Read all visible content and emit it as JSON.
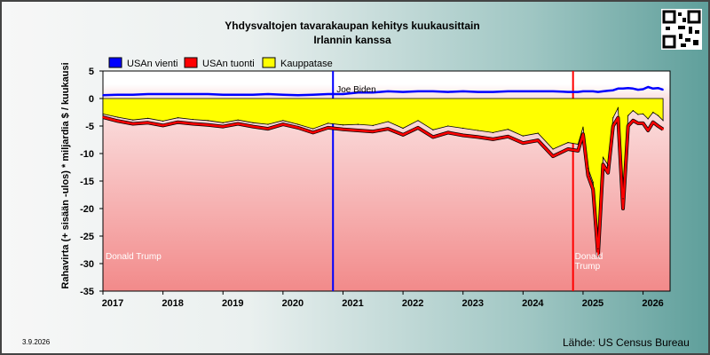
{
  "chart_data": {
    "type": "area",
    "title": "Yhdysvaltojen tavarakaupan kehitys kuukausittain",
    "subtitle": "Irlannin kanssa",
    "ylabel": "Rahavirta (+ sisään -ulos)  * miljardia $ / kuukausi",
    "ylim": [
      -35,
      5
    ],
    "y_ticks": [
      5,
      0,
      -5,
      -10,
      -15,
      -20,
      -25,
      -30,
      -35
    ],
    "x_ticks": [
      "2017",
      "2018",
      "2019",
      "2020",
      "2021",
      "2022",
      "2023",
      "2024",
      "2025",
      "2026"
    ],
    "grid": false,
    "legend_position": "top",
    "x": [
      "2017-01",
      "2017-04",
      "2017-07",
      "2017-10",
      "2018-01",
      "2018-04",
      "2018-07",
      "2018-10",
      "2019-01",
      "2019-04",
      "2019-07",
      "2019-10",
      "2020-01",
      "2020-04",
      "2020-07",
      "2020-10",
      "2021-01",
      "2021-04",
      "2021-07",
      "2021-10",
      "2022-01",
      "2022-04",
      "2022-07",
      "2022-10",
      "2023-01",
      "2023-04",
      "2023-07",
      "2023-10",
      "2024-01",
      "2024-04",
      "2024-07",
      "2024-10",
      "2024-12",
      "2025-01",
      "2025-02",
      "2025-03",
      "2025-04",
      "2025-05",
      "2025-06",
      "2025-07",
      "2025-08",
      "2025-09",
      "2025-10",
      "2025-11",
      "2025-12",
      "2026-01",
      "2026-02",
      "2026-03",
      "2026-04",
      "2026-05"
    ],
    "series": [
      {
        "name": "USAn vienti",
        "color": "#0000ff",
        "values": [
          0.6,
          0.7,
          0.7,
          0.8,
          0.8,
          0.8,
          0.8,
          0.8,
          0.7,
          0.7,
          0.7,
          0.8,
          0.7,
          0.6,
          0.7,
          0.8,
          0.8,
          1.1,
          1.1,
          1.3,
          1.2,
          1.3,
          1.3,
          1.2,
          1.3,
          1.2,
          1.2,
          1.3,
          1.3,
          1.3,
          1.3,
          1.2,
          1.2,
          1.3,
          1.3,
          1.3,
          1.2,
          1.3,
          1.4,
          1.5,
          1.8,
          1.8,
          1.9,
          1.8,
          1.6,
          1.7,
          2.1,
          1.8,
          1.9,
          1.6
        ]
      },
      {
        "name": "USAn tuonti",
        "color": "#ff0000",
        "values": [
          -3.4,
          -4.1,
          -4.6,
          -4.4,
          -4.9,
          -4.3,
          -4.6,
          -4.8,
          -5.1,
          -4.6,
          -5.1,
          -5.5,
          -4.7,
          -5.3,
          -6.2,
          -5.3,
          -5.6,
          -5.8,
          -6.0,
          -5.5,
          -6.6,
          -5.3,
          -7.0,
          -6.2,
          -6.7,
          -7.0,
          -7.4,
          -6.9,
          -8.1,
          -7.6,
          -10.5,
          -9.2,
          -9.5,
          -6.5,
          -14.0,
          -16.5,
          -28.5,
          -12.0,
          -13.5,
          -5.0,
          -3.5,
          -20.0,
          -5.0,
          -4.0,
          -4.5,
          -4.5,
          -5.8,
          -4.3,
          -5.0,
          -5.6
        ]
      },
      {
        "name": "Kauppatase",
        "color": "#ffff00",
        "values": [
          -2.8,
          -3.4,
          -3.9,
          -3.6,
          -4.1,
          -3.5,
          -3.8,
          -4.0,
          -4.4,
          -3.9,
          -4.4,
          -4.7,
          -4.0,
          -4.7,
          -5.5,
          -4.5,
          -4.8,
          -4.7,
          -4.9,
          -4.2,
          -5.4,
          -4.0,
          -5.7,
          -5.0,
          -5.4,
          -5.8,
          -6.2,
          -5.6,
          -6.8,
          -6.3,
          -9.2,
          -8.0,
          -8.3,
          -5.2,
          -12.7,
          -15.2,
          -27.3,
          -10.7,
          -12.1,
          -3.5,
          -1.7,
          -18.2,
          -3.1,
          -2.2,
          -2.9,
          -2.8,
          -3.7,
          -2.5,
          -3.1,
          -4.0
        ]
      }
    ],
    "annotations": [
      {
        "text": "Donald Trump",
        "x": "2017-01",
        "color": "#ff0000"
      },
      {
        "text": "Joe Biden",
        "x": "2020-11",
        "color": "#0000ff"
      },
      {
        "text": "Donald Trump",
        "x": "2024-11",
        "color": "#ff0000"
      }
    ],
    "date_label": "3.9.2026",
    "source": "Lähde: US Census Bureau"
  }
}
